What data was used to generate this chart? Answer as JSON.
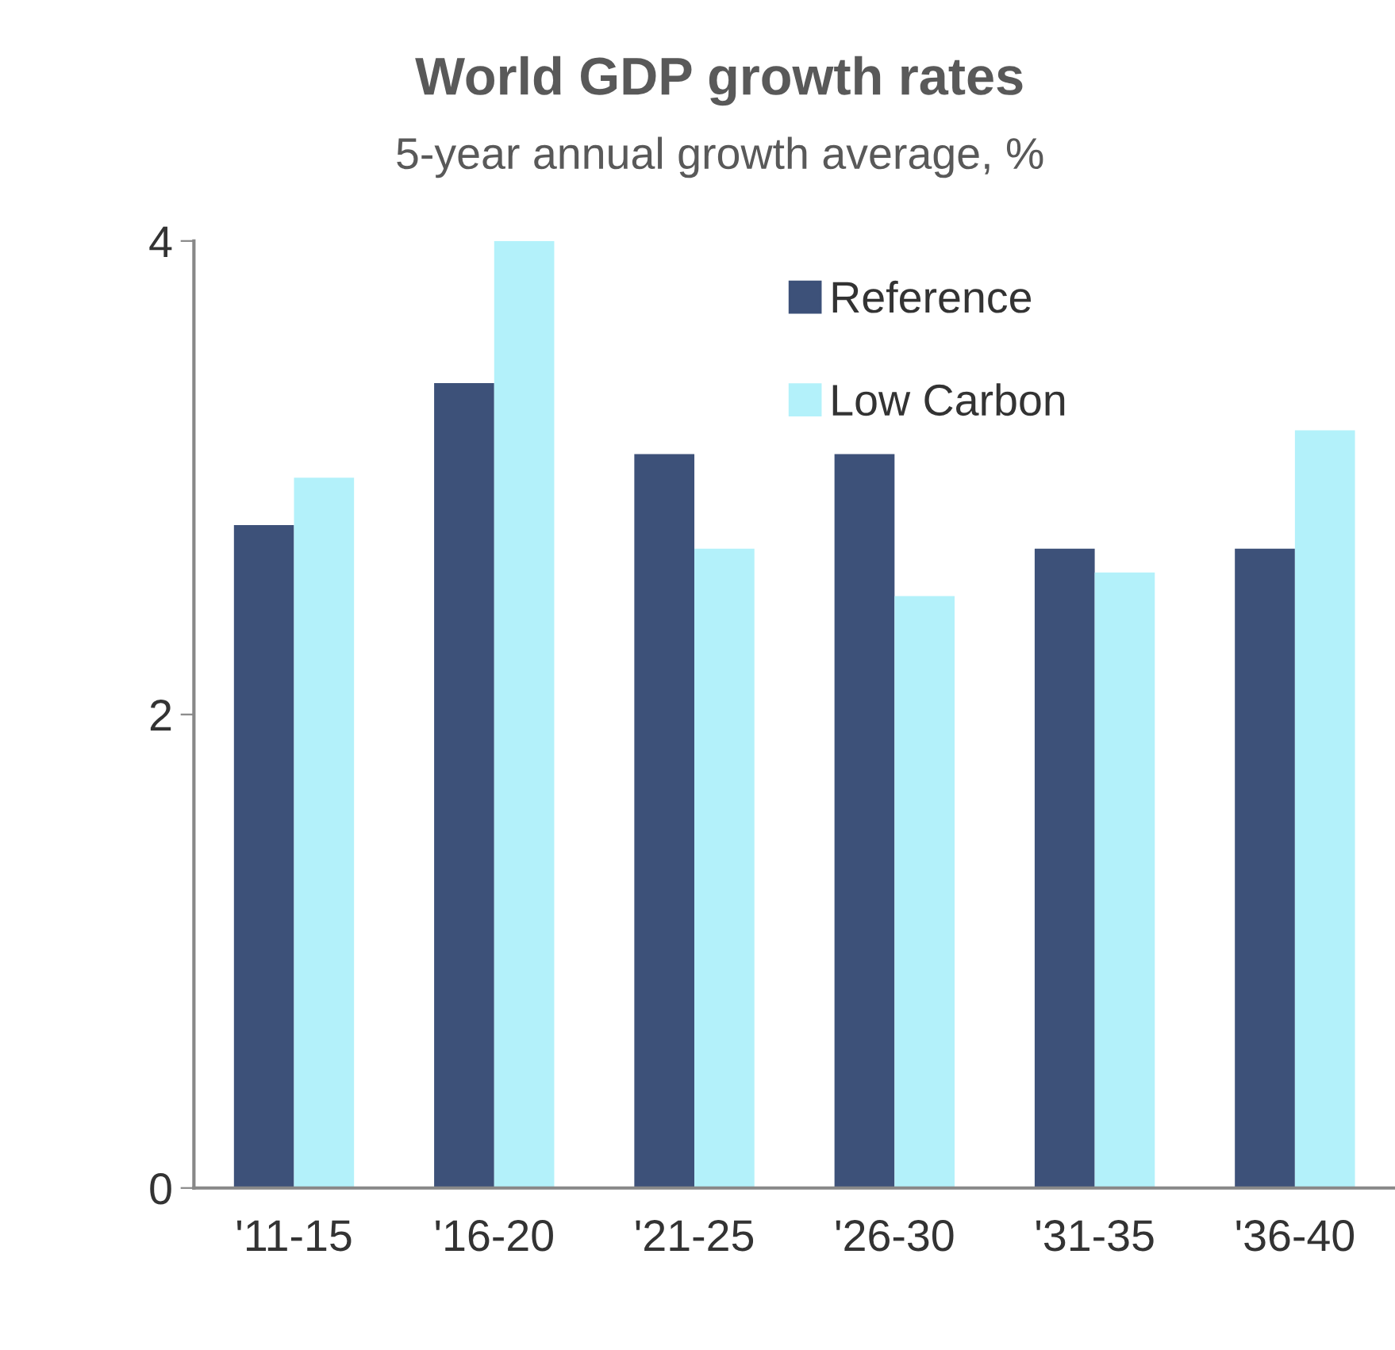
{
  "chart_data": {
    "type": "bar",
    "title": "World GDP growth rates",
    "subtitle": "5-year annual growth average, %",
    "categories": [
      "'11-15",
      "'16-20",
      "'21-25",
      "'26-30",
      "'31-35",
      "'36-40"
    ],
    "series": [
      {
        "name": "Reference",
        "color": "#3d5179",
        "values": [
          2.8,
          3.4,
          3.1,
          3.1,
          2.7,
          2.7
        ]
      },
      {
        "name": "Low Carbon",
        "color": "#b3f1fa",
        "values": [
          3.0,
          4.0,
          2.7,
          2.5,
          2.6,
          3.2
        ]
      }
    ],
    "ylim": [
      0,
      4
    ],
    "yticks": [
      0,
      2,
      4
    ],
    "grid": false,
    "legend": "top right"
  }
}
